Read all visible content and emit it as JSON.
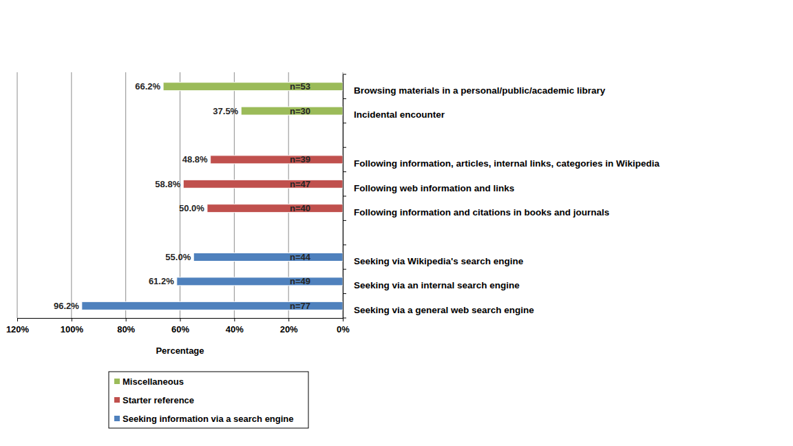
{
  "chart_data": {
    "type": "bar",
    "orientation": "horizontal",
    "x_label": "Percentage",
    "categories": [
      "Browsing materials in a personal/public/academic library",
      "Incidental encounter",
      null,
      "Following information, articles, internal links, categories in Wikipedia",
      "Following web information and links",
      "Following information and citations in books and journals",
      null,
      "Seeking via Wikipedia's search engine",
      "Seeking via an internal search engine",
      "Seeking via a general web search engine"
    ],
    "series": [
      {
        "name": "Miscellaneous",
        "color": "#9bbb59",
        "values": [
          66.2,
          37.5,
          null,
          null,
          null,
          null,
          null,
          null,
          null,
          null
        ],
        "value_labels": [
          "66.2%",
          "37.5%",
          null,
          null,
          null,
          null,
          null,
          null,
          null,
          null
        ],
        "n_labels": [
          "n=53",
          "n=30",
          null,
          null,
          null,
          null,
          null,
          null,
          null,
          null
        ]
      },
      {
        "name": "Starter reference",
        "color": "#c0504d",
        "values": [
          null,
          null,
          null,
          48.8,
          58.8,
          50.0,
          null,
          null,
          null,
          null
        ],
        "value_labels": [
          null,
          null,
          null,
          "48.8%",
          "58.8%",
          "50.0%",
          null,
          null,
          null,
          null
        ],
        "n_labels": [
          null,
          null,
          null,
          "n=39",
          "n=47",
          "n=40",
          null,
          null,
          null,
          null
        ]
      },
      {
        "name": "Seeking information via a search engine",
        "color": "#4f81bd",
        "values": [
          null,
          null,
          null,
          null,
          null,
          null,
          null,
          55.0,
          61.2,
          96.2
        ],
        "value_labels": [
          null,
          null,
          null,
          null,
          null,
          null,
          null,
          "55.0%",
          "61.2%",
          "96.2%"
        ],
        "n_labels": [
          null,
          null,
          null,
          null,
          null,
          null,
          null,
          "n=44",
          "n=49",
          "n=77"
        ]
      }
    ],
    "xlim": [
      0,
      120
    ],
    "xticks": [
      {
        "value": 0,
        "label": "0%"
      },
      {
        "value": 20,
        "label": "20%"
      },
      {
        "value": 40,
        "label": "40%"
      },
      {
        "value": 60,
        "label": "60%"
      },
      {
        "value": 80,
        "label": "80%"
      },
      {
        "value": 100,
        "label": "100%"
      },
      {
        "value": 120,
        "label": "120%"
      }
    ],
    "grid": true,
    "data_labels": true,
    "legend": "bottom"
  }
}
